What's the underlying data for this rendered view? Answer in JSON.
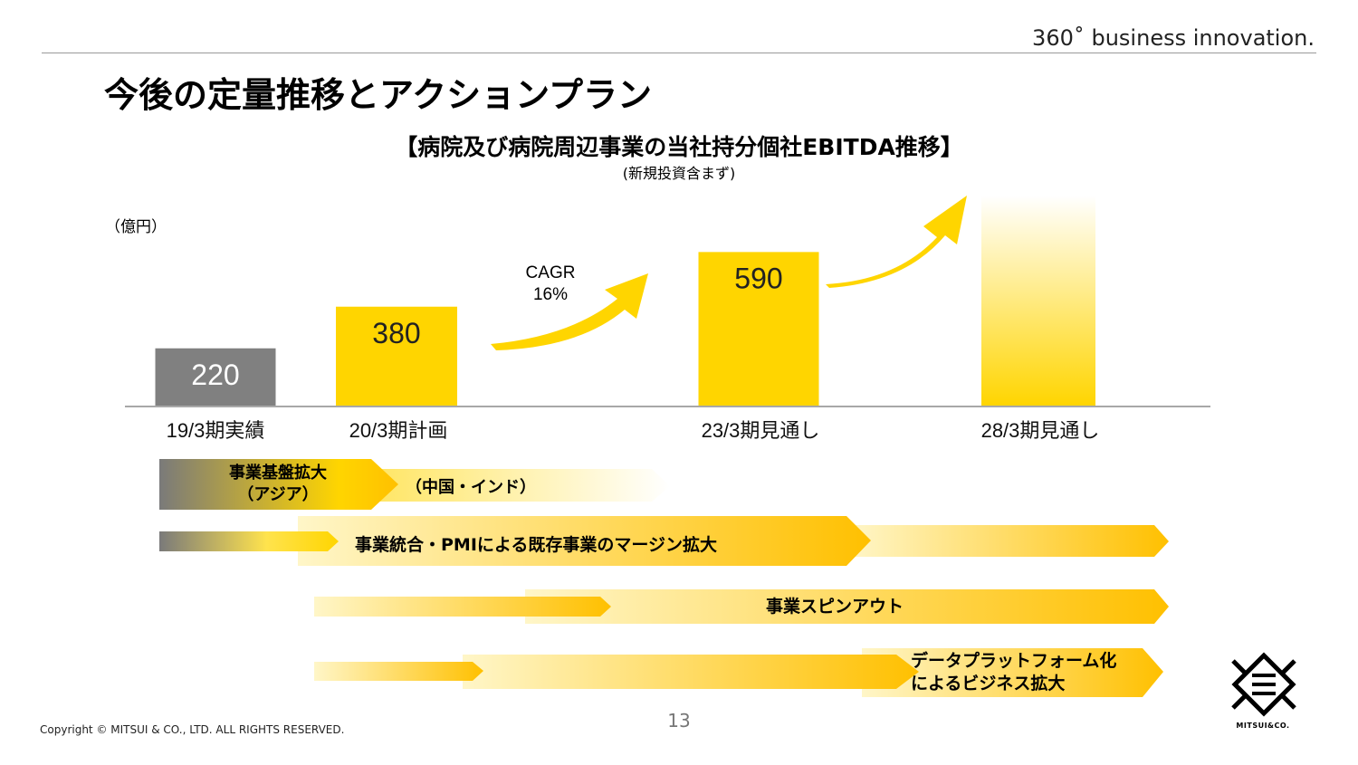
{
  "header": {
    "tagline": "360˚ business innovation.",
    "title": "今後の定量推移とアクションプラン"
  },
  "chart_data": {
    "type": "bar",
    "title": "【病院及び病院周辺事業の当社持分個社EBITDA推移】",
    "subtitle": "(新規投資含まず)",
    "unit_label": "（億円）",
    "categories": [
      "19/3期実績",
      "20/3期計画",
      "23/3期見通し",
      "28/3期見通し"
    ],
    "values": [
      220,
      380,
      590,
      null
    ],
    "value_labels": [
      "220",
      "380",
      "590",
      ""
    ],
    "bar_colors": [
      "#808080",
      "#FFD500",
      "#FFD500",
      "gradient-yellow-fade"
    ],
    "ylim": [
      0,
      800
    ],
    "annotation": "CAGR\n16%"
  },
  "actions": [
    {
      "text": "事業基盤拡大\n（アジア）",
      "sub": "（中国・インド）"
    },
    {
      "text": "事業統合・PMIによる既存事業のマージン拡大"
    },
    {
      "text": "事業スピンアウト"
    },
    {
      "text": "データプラットフォーム化\nによるビジネス拡大"
    }
  ],
  "footer": {
    "copyright": "Copyright © MITSUI & CO., LTD. ALL RIGHTS RESERVED.",
    "page_number": "13",
    "logo_text": "MITSUI&CO."
  },
  "colors": {
    "yellow": "#FFD500",
    "gray": "#808080",
    "axis": "#8c8c8c"
  }
}
